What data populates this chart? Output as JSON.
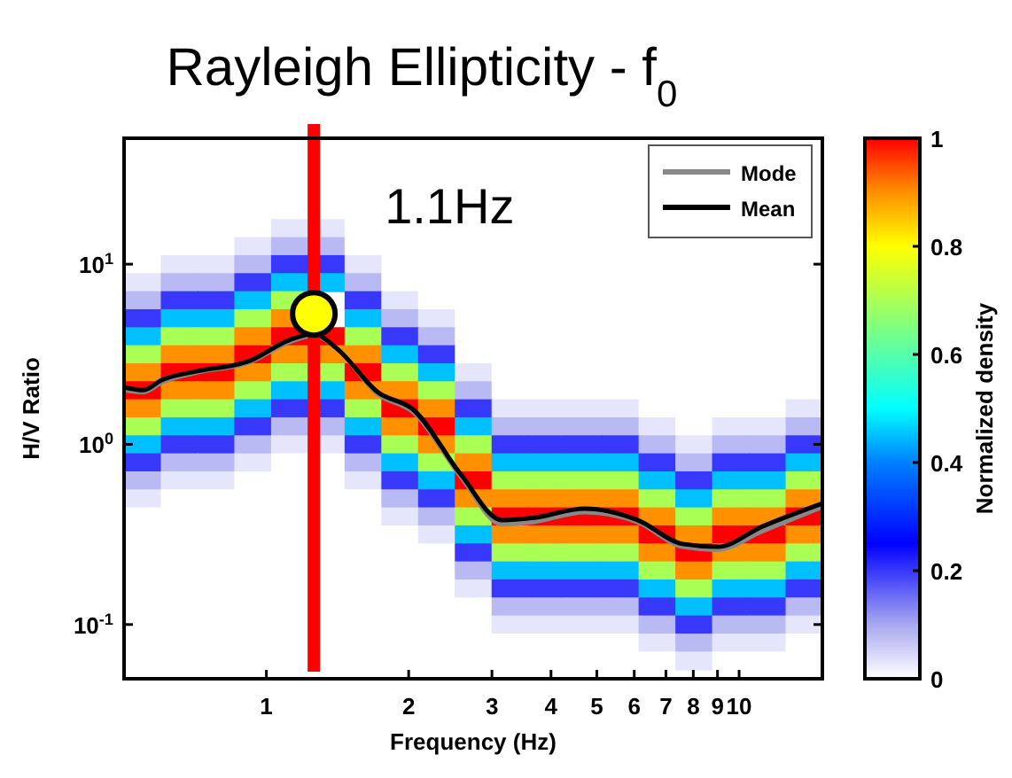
{
  "chart_data": [
    {
      "type": "heatmap",
      "clabel": "Normalized density",
      "clim": [
        0,
        1
      ],
      "cticks": [
        0,
        0.2,
        0.4,
        0.6,
        0.8,
        1
      ],
      "categories": [
        null,
        null,
        null,
        null,
        null,
        null,
        null,
        null,
        null,
        null,
        null,
        null,
        null,
        null,
        null,
        null,
        null,
        null,
        null
      ],
      "y_categories": [
        null,
        null,
        null,
        null,
        null,
        null,
        null,
        null,
        null,
        null,
        null,
        null,
        null,
        null,
        null,
        null,
        null,
        null,
        null,
        null,
        null,
        null,
        null,
        null,
        null
      ],
      "cells": [
        [
          0,
          0,
          0,
          0,
          0.03,
          0.03,
          0,
          0,
          0,
          0,
          0,
          0,
          0,
          0,
          0,
          0,
          0,
          0,
          0
        ],
        [
          0,
          0,
          0,
          0.03,
          0.08,
          0.08,
          0,
          0,
          0,
          0,
          0,
          0,
          0,
          0,
          0,
          0,
          0,
          0,
          0
        ],
        [
          0,
          0.03,
          0.03,
          0.08,
          0.2,
          0.2,
          0.03,
          0,
          0,
          0,
          0,
          0,
          0,
          0,
          0,
          0,
          0,
          0,
          0
        ],
        [
          0.03,
          0.08,
          0.08,
          0.2,
          0.45,
          0.45,
          0.08,
          0,
          0,
          0,
          0,
          0,
          0,
          0,
          0,
          0,
          0,
          0,
          0
        ],
        [
          0.08,
          0.2,
          0.2,
          0.45,
          0.7,
          null,
          0.2,
          0.03,
          0,
          0,
          0,
          0,
          0,
          0,
          0,
          0,
          0,
          0,
          0
        ],
        [
          0.2,
          0.45,
          0.45,
          0.7,
          0.9,
          null,
          0.45,
          0.08,
          0.03,
          0,
          0,
          0,
          0,
          0,
          0,
          0,
          0,
          0,
          0
        ],
        [
          0.45,
          0.7,
          0.7,
          0.9,
          1,
          1,
          0.7,
          0.2,
          0.08,
          0,
          0,
          0,
          0,
          0,
          0,
          0,
          0,
          0,
          0
        ],
        [
          0.7,
          0.9,
          0.9,
          1,
          0.9,
          0.9,
          0.9,
          0.45,
          0.2,
          0,
          0,
          0,
          0,
          0,
          0,
          0,
          0,
          0,
          0
        ],
        [
          0.9,
          1,
          1,
          0.9,
          0.7,
          0.7,
          1,
          0.7,
          0.45,
          0.03,
          0,
          0,
          0,
          0,
          0,
          0,
          0,
          0,
          0
        ],
        [
          1,
          0.9,
          0.9,
          0.7,
          0.45,
          0.45,
          0.9,
          0.9,
          0.7,
          0.08,
          0,
          0,
          0,
          0,
          0,
          0,
          0,
          0,
          0
        ],
        [
          0.9,
          0.7,
          0.7,
          0.45,
          0.2,
          0.2,
          0.7,
          1,
          0.9,
          0.2,
          0.03,
          0.03,
          0.03,
          0.03,
          0,
          0,
          0,
          0,
          0.03
        ],
        [
          0.7,
          0.45,
          0.45,
          0.2,
          0.08,
          0.08,
          0.45,
          0.9,
          1,
          0.45,
          0.08,
          0.08,
          0.08,
          0.08,
          0.03,
          0,
          0.03,
          0.03,
          0.08
        ],
        [
          0.45,
          0.2,
          0.2,
          0.08,
          0.03,
          0.03,
          0.2,
          0.7,
          0.9,
          0.7,
          0.2,
          0.2,
          0.2,
          0.2,
          0.08,
          0.03,
          0.08,
          0.08,
          0.2
        ],
        [
          0.2,
          0.08,
          0.08,
          0.03,
          0,
          0,
          0.08,
          0.45,
          0.7,
          0.9,
          0.45,
          0.45,
          0.45,
          0.45,
          0.2,
          0.08,
          0.2,
          0.2,
          0.45
        ],
        [
          0.08,
          0.03,
          0.03,
          0,
          0,
          0,
          0.03,
          0.2,
          0.45,
          1,
          0.7,
          0.7,
          0.7,
          0.7,
          0.45,
          0.2,
          0.45,
          0.45,
          0.7
        ],
        [
          0.03,
          0,
          0,
          0,
          0,
          0,
          0,
          0.08,
          0.2,
          0.9,
          0.9,
          0.9,
          0.9,
          0.9,
          0.7,
          0.45,
          0.7,
          0.7,
          0.9
        ],
        [
          0,
          0,
          0,
          0,
          0,
          0,
          0,
          0.03,
          0.08,
          0.7,
          1,
          1,
          1,
          1,
          0.9,
          0.7,
          0.9,
          0.9,
          1
        ],
        [
          0,
          0,
          0,
          0,
          0,
          0,
          0,
          0,
          0.03,
          0.45,
          0.9,
          0.9,
          0.9,
          0.9,
          1,
          0.9,
          1,
          1,
          0.9
        ],
        [
          0,
          0,
          0,
          0,
          0,
          0,
          0,
          0,
          0,
          0.2,
          0.7,
          0.7,
          0.7,
          0.7,
          0.9,
          1,
          0.9,
          0.9,
          0.7
        ],
        [
          0,
          0,
          0,
          0,
          0,
          0,
          0,
          0,
          0,
          0.08,
          0.45,
          0.45,
          0.45,
          0.45,
          0.7,
          0.9,
          0.7,
          0.7,
          0.45
        ],
        [
          0,
          0,
          0,
          0,
          0,
          0,
          0,
          0,
          0,
          0.03,
          0.2,
          0.2,
          0.2,
          0.2,
          0.45,
          0.7,
          0.45,
          0.45,
          0.2
        ],
        [
          0,
          0,
          0,
          0,
          0,
          0,
          0,
          0,
          0,
          0,
          0.08,
          0.08,
          0.08,
          0.08,
          0.2,
          0.45,
          0.2,
          0.2,
          0.08
        ],
        [
          0,
          0,
          0,
          0,
          0,
          0,
          0,
          0,
          0,
          0,
          0.03,
          0.03,
          0.03,
          0.03,
          0.08,
          0.2,
          0.08,
          0.08,
          0.03
        ],
        [
          0,
          0,
          0,
          0,
          0,
          0,
          0,
          0,
          0,
          0,
          0,
          0,
          0,
          0,
          0.03,
          0.08,
          0.03,
          0.03,
          0
        ],
        [
          0,
          0,
          0,
          0,
          0,
          0,
          0,
          0,
          0,
          0,
          0,
          0,
          0,
          0,
          0,
          0.03,
          0,
          0,
          0
        ]
      ]
    },
    {
      "type": "line",
      "title": "Rayleigh Ellipticity - f$_{0}$",
      "xlabel": "Frequency (Hz)",
      "ylabel": "H/V Ratio",
      "log": "xy",
      "legend": "top right",
      "xlim": [
        0.5,
        15
      ],
      "ylim": [
        0.05,
        50
      ],
      "xticks": [
        1,
        2,
        3,
        4,
        5,
        6,
        7,
        8,
        9,
        10
      ],
      "yticks": [
        {
          "value": 0.1,
          "label": "10$^{-1}$"
        },
        {
          "value": 1,
          "label": "10$^{0}$"
        },
        {
          "value": 10,
          "label": "10$^{1}$"
        }
      ],
      "x": [
        0.5,
        0.55,
        0.6,
        0.71,
        0.92,
        1.12,
        1.26,
        1.41,
        1.72,
        2.05,
        2.58,
        3.15,
        3.65,
        4.72,
        6.1,
        7.6,
        9,
        11.2,
        15
      ],
      "ref_lines": [
        {
          "axis": "x",
          "value": 1.26,
          "label": "1.1Hz",
          "color": "#ff0000"
        }
      ],
      "series": [
        {
          "name": "Mode",
          "color": "#888888",
          "values": [
            2.0,
            1.95,
            2.2,
            2.5,
            2.85,
            3.7,
            4.0,
            3.4,
            1.9,
            1.5,
            0.66,
            0.36,
            0.37,
            0.42,
            0.37,
            0.27,
            0.26,
            0.33,
            0.45
          ]
        },
        {
          "name": "Mean",
          "color": "#000000",
          "values": [
            2.07,
            2.0,
            2.27,
            2.54,
            2.9,
            3.8,
            4.1,
            3.4,
            1.95,
            1.55,
            0.68,
            0.38,
            0.39,
            0.44,
            0.38,
            0.28,
            0.27,
            0.35,
            0.47
          ]
        },
        {
          "type": "scatter",
          "x": [
            1.26
          ],
          "values": [
            5.3
          ],
          "color": "#ffff00",
          "marker": "circle"
        }
      ]
    }
  ]
}
